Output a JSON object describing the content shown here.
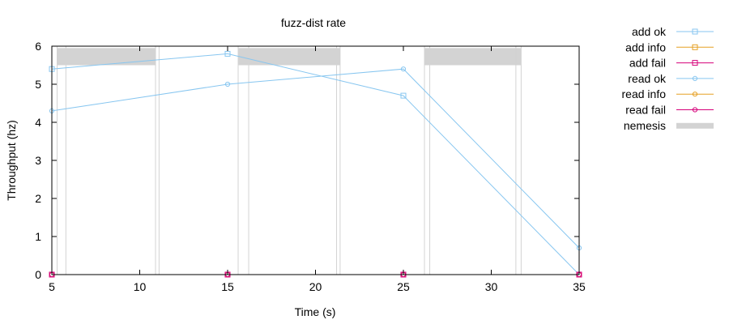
{
  "chart_data": {
    "type": "line",
    "title": "fuzz-dist rate",
    "xlabel": "Time (s)",
    "ylabel": "Throughput (hz)",
    "xlim": [
      5,
      35
    ],
    "ylim": [
      0,
      6
    ],
    "x_ticks": [
      5,
      10,
      15,
      20,
      25,
      30,
      35
    ],
    "y_ticks": [
      0,
      1,
      2,
      3,
      4,
      5,
      6
    ],
    "grid": false,
    "legend_position": "outside-right",
    "series": [
      {
        "name": "add ok",
        "color": "#87c6f0",
        "marker": "square",
        "x": [
          5,
          15,
          25,
          35
        ],
        "y": [
          5.4,
          5.8,
          4.7,
          0
        ]
      },
      {
        "name": "add info",
        "color": "#e6a024",
        "marker": "square",
        "x": [
          5,
          15,
          25,
          35
        ],
        "y": [
          0,
          0,
          0,
          0
        ]
      },
      {
        "name": "add fail",
        "color": "#d6007a",
        "marker": "square",
        "x": [
          5,
          15,
          25,
          35
        ],
        "y": [
          0,
          0,
          0,
          0
        ]
      },
      {
        "name": "read ok",
        "color": "#87c6f0",
        "marker": "circle",
        "x": [
          5,
          15,
          25,
          35
        ],
        "y": [
          4.3,
          5.0,
          5.4,
          0.7
        ]
      },
      {
        "name": "read info",
        "color": "#e6a024",
        "marker": "circle",
        "x": [
          5,
          15,
          25,
          35
        ],
        "y": [
          0,
          0,
          0,
          0
        ]
      },
      {
        "name": "read fail",
        "color": "#d6007a",
        "marker": "circle",
        "x": [
          5,
          15,
          25,
          35
        ],
        "y": [
          0,
          0,
          0,
          0
        ]
      }
    ],
    "nemesis": {
      "name": "nemesis",
      "color": "#d3d3d3",
      "band_y": [
        5.5,
        5.95
      ],
      "intervals": [
        [
          5.3,
          10.9
        ],
        [
          15.6,
          21.4
        ],
        [
          26.2,
          31.7
        ]
      ],
      "boundary_lines": [
        5.3,
        5.8,
        10.9,
        11.1,
        15.6,
        16.2,
        21.2,
        21.4,
        26.2,
        26.5,
        31.4,
        31.7
      ]
    }
  }
}
